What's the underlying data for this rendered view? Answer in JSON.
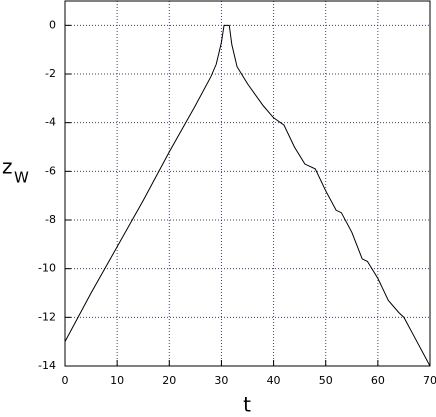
{
  "chart_data": {
    "type": "line",
    "xlabel": "t",
    "ylabel": "z",
    "ylabel_subscript": "W",
    "xlim": [
      0,
      70
    ],
    "ylim": [
      -14,
      1
    ],
    "xticks": [
      0,
      10,
      20,
      30,
      40,
      50,
      60,
      70
    ],
    "yticks": [
      -14,
      -12,
      -10,
      -8,
      -6,
      -4,
      -2,
      0
    ],
    "grid": true,
    "series": [
      {
        "color": "#000000",
        "x": [
          0,
          5,
          10,
          15,
          20,
          25,
          28,
          29,
          30,
          30.5,
          31.5,
          32,
          33,
          35,
          38,
          40,
          42,
          44,
          46,
          48,
          50,
          52,
          53,
          55,
          57,
          58,
          60,
          62,
          64,
          65,
          67,
          70
        ],
        "values": [
          -13,
          -11,
          -9.1,
          -7.2,
          -5.2,
          -3.3,
          -2.1,
          -1.6,
          -0.7,
          0,
          0,
          -0.8,
          -1.7,
          -2.4,
          -3.3,
          -3.8,
          -4.1,
          -5,
          -5.7,
          -5.9,
          -6.8,
          -7.6,
          -7.7,
          -8.5,
          -9.6,
          -9.7,
          -10.4,
          -11.3,
          -11.8,
          -12,
          -12.8,
          -14
        ]
      }
    ]
  }
}
